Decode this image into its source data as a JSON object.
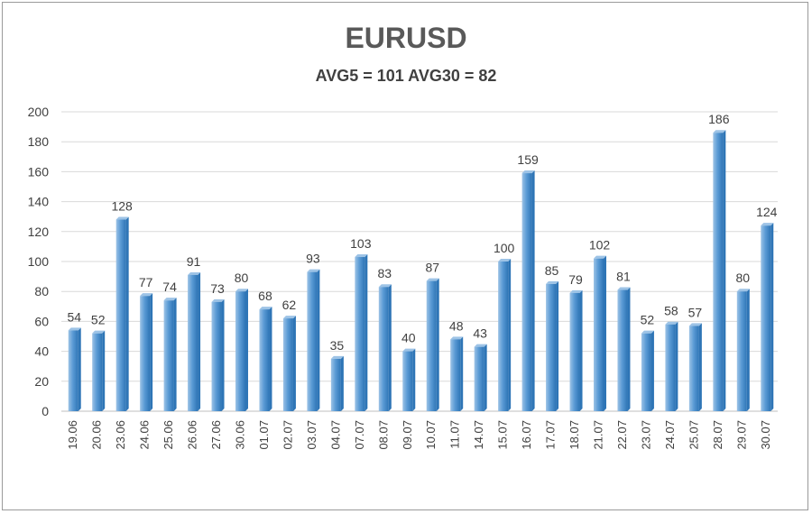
{
  "chart_data": {
    "type": "bar",
    "title": "EURUSD",
    "subtitle": "AVG5 = 101 AVG30 = 82",
    "categories": [
      "19.06",
      "20.06",
      "23.06",
      "24.06",
      "25.06",
      "26.06",
      "27.06",
      "30.06",
      "01.07",
      "02.07",
      "03.07",
      "04.07",
      "07.07",
      "08.07",
      "09.07",
      "10.07",
      "11.07",
      "14.07",
      "15.07",
      "16.07",
      "17.07",
      "18.07",
      "21.07",
      "22.07",
      "23.07",
      "24.07",
      "25.07",
      "28.07",
      "29.07",
      "30.07"
    ],
    "values": [
      54,
      52,
      128,
      77,
      74,
      91,
      73,
      80,
      68,
      62,
      93,
      35,
      103,
      83,
      40,
      87,
      48,
      43,
      100,
      159,
      85,
      79,
      102,
      81,
      52,
      58,
      57,
      186,
      80,
      124
    ],
    "yticks": [
      0,
      20,
      40,
      60,
      80,
      100,
      120,
      140,
      160,
      180,
      200
    ],
    "ylim": [
      0,
      200
    ],
    "grid": true,
    "colors": {
      "bar": "#5b9bd5",
      "bar_light": "#9dc3e6",
      "bar_dark": "#2e75b6",
      "grid": "#d9d9d9"
    }
  }
}
